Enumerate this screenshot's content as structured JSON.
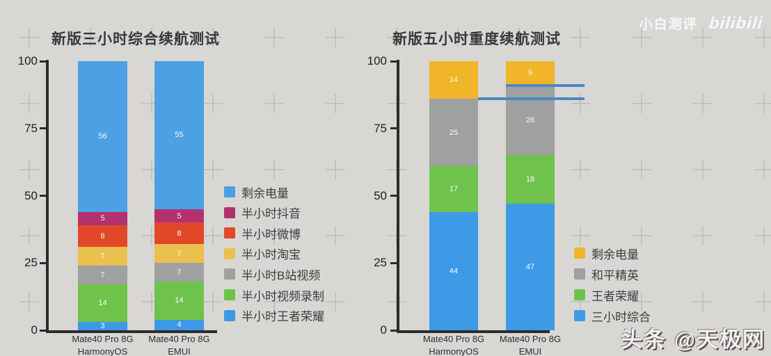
{
  "watermarks": {
    "top_left_text": "小白测评",
    "top_logo_text": "bilibili",
    "bottom_right_text": "头条 @天极网"
  },
  "colors": {
    "background": "#d8d7d4",
    "axis": "#2b2b2b",
    "annotation_line": "#4d87c6",
    "title": "#383838"
  },
  "chart_data": [
    {
      "type": "bar",
      "subtype": "stacked-vertical",
      "title": "新版三小时综合续航测试",
      "categories": [
        [
          "Mate40 Pro 8G",
          "HarmonyOS"
        ],
        [
          "Mate40 Pro 8G",
          "EMUI"
        ]
      ],
      "ylim": [
        0,
        100
      ],
      "yticks": [
        0,
        25,
        50,
        75,
        100
      ],
      "grid": false,
      "legend_position": "right",
      "series": [
        {
          "name": "半小时王者荣耀",
          "color": "#3d98e6",
          "values": [
            3,
            4
          ]
        },
        {
          "name": "半小时视频录制",
          "color": "#6fc24b",
          "values": [
            14,
            14
          ]
        },
        {
          "name": "半小时B站视频",
          "color": "#9fa0a0",
          "values": [
            7,
            7
          ]
        },
        {
          "name": "半小时淘宝",
          "color": "#eac04e",
          "values": [
            7,
            7
          ]
        },
        {
          "name": "半小时微博",
          "color": "#e1482a",
          "values": [
            8,
            8
          ]
        },
        {
          "name": "半小时抖音",
          "color": "#b4316f",
          "values": [
            5,
            5
          ]
        },
        {
          "name": "剩余电量",
          "color": "#4ba1e4",
          "values": [
            56,
            55
          ]
        }
      ],
      "annotation_lines": []
    },
    {
      "type": "bar",
      "subtype": "stacked-vertical",
      "title": "新版五小时重度续航测试",
      "categories": [
        [
          "Mate40 Pro 8G",
          "HarmonyOS"
        ],
        [
          "Mate40 Pro 8G",
          "EMUI"
        ]
      ],
      "ylim": [
        0,
        100
      ],
      "yticks": [
        0,
        25,
        50,
        75,
        100
      ],
      "grid": false,
      "legend_position": "right",
      "series": [
        {
          "name": "三小时综合",
          "color": "#3d9ae6",
          "values": [
            44,
            47
          ]
        },
        {
          "name": "王者荣耀",
          "color": "#6fc24b",
          "values": [
            17,
            18
          ]
        },
        {
          "name": "和平精英",
          "color": "#9fa0a0",
          "values": [
            25,
            26
          ]
        },
        {
          "name": "剩余电量",
          "color": "#f1b52a",
          "values": [
            14,
            9
          ]
        }
      ],
      "annotation_lines": [
        {
          "value": 86,
          "anchor_bar": 0
        },
        {
          "value": 91,
          "anchor_bar": 1
        }
      ]
    }
  ]
}
